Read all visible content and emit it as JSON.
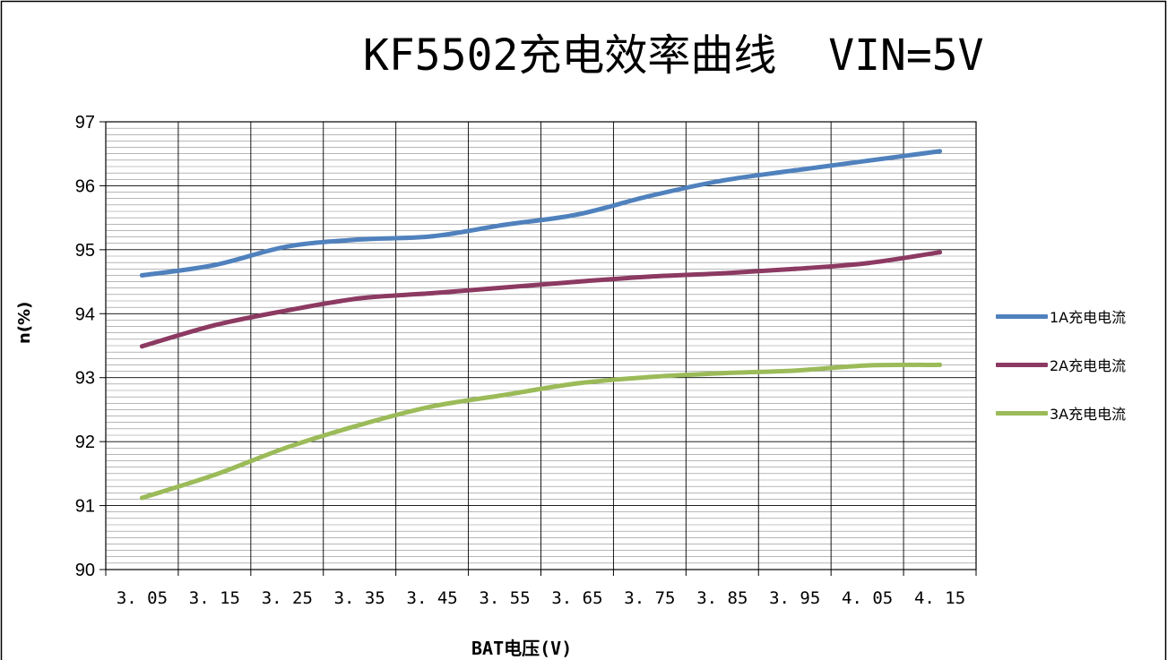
{
  "chart_data": {
    "type": "line",
    "title": "KF5502充电效率曲线  VIN=5V",
    "xlabel": "BAT电压(V)",
    "ylabel": "n(%)",
    "categories": [
      "3.05",
      "3.15",
      "3.25",
      "3.35",
      "3.45",
      "3.55",
      "3.65",
      "3.75",
      "3.85",
      "3.95",
      "4.05",
      "4.15"
    ],
    "category_labels": [
      "3. 05",
      "3. 15",
      "3. 25",
      "3. 35",
      "3. 45",
      "3. 55",
      "3. 65",
      "3. 75",
      "3. 85",
      "3. 95",
      "4. 05",
      "4. 15"
    ],
    "ylim": [
      90,
      97
    ],
    "yticks": [
      90,
      91,
      92,
      93,
      94,
      95,
      96,
      97
    ],
    "grid": true,
    "legend_position": "right",
    "series": [
      {
        "name": "1A充电电流",
        "color": "#4F81BD",
        "values": [
          94.6,
          94.76,
          95.05,
          95.16,
          95.21,
          95.39,
          95.55,
          95.84,
          96.08,
          96.24,
          96.39,
          96.54
        ]
      },
      {
        "name": "2A充电电流",
        "color": "#8C3A62",
        "values": [
          93.49,
          93.82,
          94.05,
          94.24,
          94.32,
          94.41,
          94.5,
          94.58,
          94.63,
          94.7,
          94.79,
          94.96
        ]
      },
      {
        "name": "3A充电电流",
        "color": "#9BBB59",
        "values": [
          91.12,
          91.48,
          91.91,
          92.26,
          92.55,
          92.73,
          92.91,
          93.01,
          93.07,
          93.11,
          93.19,
          93.2
        ]
      }
    ]
  }
}
